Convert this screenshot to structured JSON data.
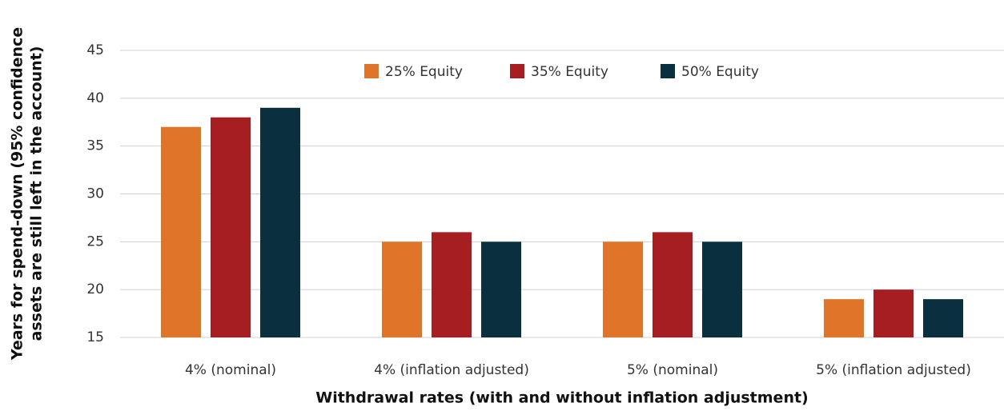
{
  "chart_data": {
    "type": "bar",
    "ylabel": [
      "Years for spend-down (95% confidence",
      "assets are still left in the account)"
    ],
    "xlabel": "Withdrawal rates (with and without inflation adjustment)",
    "categories": [
      "4% (nominal)",
      "4% (inflation adjusted)",
      "5% (nominal)",
      "5% (inflation adjusted)"
    ],
    "series": [
      {
        "name": "25% Equity",
        "color": "#e07428",
        "values": [
          37,
          25,
          25,
          19
        ]
      },
      {
        "name": "35% Equity",
        "color": "#a61e22",
        "values": [
          38,
          26,
          26,
          20
        ]
      },
      {
        "name": "50% Equity",
        "color": "#0a2f3f",
        "values": [
          39,
          25,
          25,
          19
        ]
      }
    ],
    "ylim": [
      15,
      45
    ],
    "yticks": [
      15,
      20,
      25,
      30,
      35,
      40,
      45
    ],
    "grid": true,
    "legend": "top"
  }
}
